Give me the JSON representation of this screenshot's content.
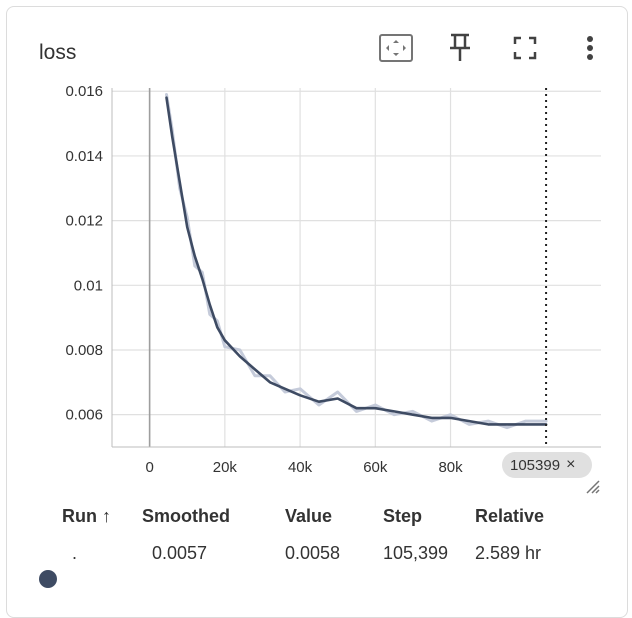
{
  "card": {
    "title": "loss"
  },
  "toolbar": {
    "fit_icon": "fit-domain-icon",
    "pin_icon": "pin-icon",
    "fullscreen_icon": "fullscreen-icon",
    "more_icon": "more-vert-icon"
  },
  "colors": {
    "smoothed": "#3e4b63",
    "raw": "#c5cbda",
    "grid": "#e0e0e0"
  },
  "chart_data": {
    "type": "line",
    "title": "",
    "xlabel": "",
    "ylabel": "",
    "xlim": [
      -10000,
      120000
    ],
    "ylim": [
      0.005,
      0.0161
    ],
    "x_ticks": [
      0,
      20000,
      40000,
      60000,
      80000
    ],
    "x_tick_labels": [
      "0",
      "20k",
      "40k",
      "60k",
      "80k"
    ],
    "y_ticks": [
      0.006,
      0.008,
      0.01,
      0.012,
      0.014,
      0.016
    ],
    "y_tick_labels": [
      "0.006",
      "0.008",
      "0.01",
      "0.012",
      "0.014",
      "0.016"
    ],
    "grid": true,
    "cursor_step": 105399,
    "series": [
      {
        "style": "smoothed",
        "x": [
          4500,
          6000,
          8000,
          10000,
          12000,
          14000,
          16000,
          18000,
          20000,
          24000,
          28000,
          32000,
          36000,
          40000,
          45000,
          50000,
          55000,
          60000,
          65000,
          70000,
          75000,
          80000,
          85000,
          90000,
          95000,
          100000,
          105399
        ],
        "y": [
          0.0158,
          0.0146,
          0.0132,
          0.0118,
          0.0109,
          0.0102,
          0.0094,
          0.0087,
          0.0083,
          0.0078,
          0.0074,
          0.007,
          0.0068,
          0.0066,
          0.0064,
          0.0065,
          0.0062,
          0.0062,
          0.0061,
          0.006,
          0.0059,
          0.0059,
          0.0058,
          0.0057,
          0.0057,
          0.0057,
          0.0057
        ]
      },
      {
        "style": "raw",
        "x": [
          4500,
          6000,
          8000,
          10000,
          12000,
          14000,
          16000,
          18000,
          20000,
          24000,
          28000,
          32000,
          36000,
          40000,
          45000,
          50000,
          55000,
          60000,
          65000,
          70000,
          75000,
          80000,
          85000,
          90000,
          95000,
          100000,
          105399
        ],
        "y": [
          0.0159,
          0.0148,
          0.013,
          0.0121,
          0.0106,
          0.0104,
          0.0091,
          0.0089,
          0.0081,
          0.008,
          0.0072,
          0.0072,
          0.0067,
          0.0068,
          0.0063,
          0.0067,
          0.0061,
          0.0063,
          0.006,
          0.0061,
          0.0058,
          0.006,
          0.0057,
          0.0058,
          0.0056,
          0.0058,
          0.0058
        ]
      }
    ]
  },
  "badge": {
    "step": "105399",
    "close": "×"
  },
  "table": {
    "headers": {
      "run": "Run ↑",
      "smoothed": "Smoothed",
      "value": "Value",
      "step": "Step",
      "relative": "Relative"
    },
    "rows": [
      {
        "run": ".",
        "smoothed": "0.0057",
        "value": "0.0058",
        "step": "105,399",
        "relative": "2.589 hr"
      }
    ]
  }
}
